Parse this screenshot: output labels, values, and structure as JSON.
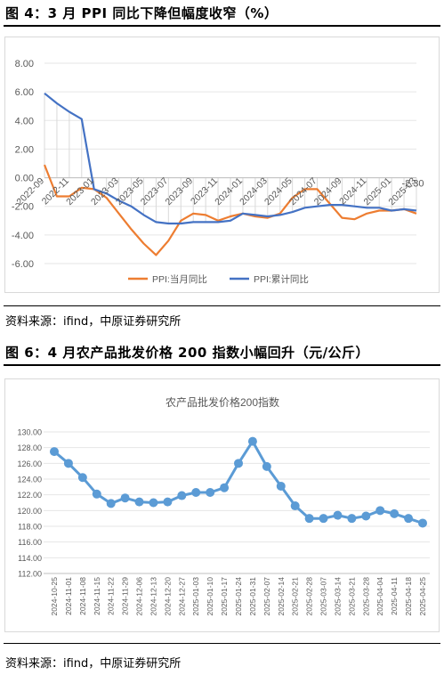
{
  "figure1": {
    "title": "图 4：3 月 PPI 同比下降但幅度收窄（%）",
    "source": "资料来源：ifind，中原证券研究所",
    "chart_data": {
      "type": "line",
      "title": "",
      "xlabel": "",
      "ylabel": "",
      "ylim": [
        -6,
        8
      ],
      "yticks": [
        "8.00",
        "6.00",
        "4.00",
        "2.00",
        "0.00",
        "-2.00",
        "-4.00",
        "-6.00"
      ],
      "x_labels": [
        "2022-09",
        "2022-11",
        "2023-01",
        "2023-03",
        "2023-05",
        "2023-07",
        "2023-09",
        "2023-11",
        "2024-01",
        "2024-03",
        "2024-05",
        "2024-07",
        "2024-09",
        "2024-11",
        "2025-01",
        "2025-03"
      ],
      "x": [
        "2022-09",
        "2022-10",
        "2022-11",
        "2022-12",
        "2023-01",
        "2023-02",
        "2023-03",
        "2023-04",
        "2023-05",
        "2023-06",
        "2023-07",
        "2023-08",
        "2023-09",
        "2023-10",
        "2023-11",
        "2023-12",
        "2024-01",
        "2024-02",
        "2024-03",
        "2024-04",
        "2024-05",
        "2024-06",
        "2024-07",
        "2024-08",
        "2024-09",
        "2024-10",
        "2024-11",
        "2024-12",
        "2025-01",
        "2025-02",
        "2025-03"
      ],
      "series": [
        {
          "name": "PPI:当月同比",
          "color": "#ED7D31",
          "values": [
            0.9,
            -1.3,
            -1.3,
            -0.7,
            -0.8,
            -1.4,
            -2.5,
            -3.6,
            -4.6,
            -5.4,
            -4.4,
            -3.0,
            -2.5,
            -2.6,
            -3.0,
            -2.7,
            -2.5,
            -2.7,
            -2.8,
            -2.5,
            -1.4,
            -0.8,
            -0.8,
            -1.8,
            -2.8,
            -2.9,
            -2.5,
            -2.3,
            -2.3,
            -2.2,
            -2.5
          ]
        },
        {
          "name": "PPI:累计同比",
          "color": "#4472C4",
          "values": [
            5.9,
            5.2,
            4.6,
            4.1,
            -0.8,
            -1.1,
            -1.6,
            -2.0,
            -2.6,
            -3.1,
            -3.2,
            -3.2,
            -3.1,
            -3.1,
            -3.1,
            -3.0,
            -2.5,
            -2.6,
            -2.7,
            -2.6,
            -2.4,
            -2.1,
            -2.0,
            -1.9,
            -1.9,
            -2.0,
            -2.1,
            -2.1,
            -2.3,
            -2.2,
            -2.3
          ]
        }
      ],
      "annotation": "-2.30",
      "legend": "bottom",
      "grid": true
    }
  },
  "figure2": {
    "title": "图 6：4 月农产品批发价格 200 指数小幅回升（元/公斤）",
    "source": "资料来源：ifind，中原证券研究所",
    "chart_data": {
      "type": "line",
      "title": "农产品批发价格200指数",
      "xlabel": "",
      "ylabel": "",
      "ylim": [
        112,
        130
      ],
      "yticks": [
        "130.00",
        "128.00",
        "126.00",
        "124.00",
        "122.00",
        "120.00",
        "118.00",
        "116.00",
        "114.00",
        "112.00"
      ],
      "categories": [
        "2024-10-25",
        "2024-11-01",
        "2024-11-08",
        "2024-11-15",
        "2024-11-22",
        "2024-11-29",
        "2024-12-06",
        "2024-12-13",
        "2024-12-20",
        "2024-12-27",
        "2025-01-03",
        "2025-01-10",
        "2025-01-17",
        "2025-01-24",
        "2025-01-31",
        "2025-02-07",
        "2025-02-14",
        "2025-02-21",
        "2025-02-28",
        "2025-03-07",
        "2025-03-14",
        "2025-03-21",
        "2025-03-28",
        "2025-04-04",
        "2025-04-11",
        "2025-04-18",
        "2025-04-25"
      ],
      "series": [
        {
          "name": "",
          "color": "#5B9BD5",
          "values": [
            127.5,
            126.0,
            124.2,
            122.1,
            120.9,
            121.6,
            121.1,
            121.0,
            121.1,
            121.9,
            122.3,
            122.3,
            122.9,
            126.0,
            128.8,
            125.6,
            123.1,
            120.6,
            119.0,
            119.0,
            119.4,
            119.0,
            119.3,
            120.0,
            119.6,
            119.0,
            118.4
          ]
        }
      ],
      "grid": true
    }
  }
}
